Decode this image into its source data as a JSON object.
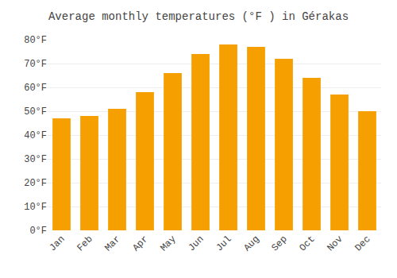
{
  "chart_data": {
    "type": "bar",
    "title": "Average monthly temperatures (°F ) in Gérakas",
    "categories": [
      "Jan",
      "Feb",
      "Mar",
      "Apr",
      "May",
      "Jun",
      "Jul",
      "Aug",
      "Sep",
      "Oct",
      "Nov",
      "Dec"
    ],
    "values": [
      47,
      48,
      51,
      58,
      66,
      74,
      78,
      77,
      72,
      64,
      57,
      50
    ],
    "color": "#F5A000",
    "ylim": [
      0,
      80
    ],
    "yticks": [
      {
        "value": 0,
        "label": "0°F"
      },
      {
        "value": 10,
        "label": "10°F"
      },
      {
        "value": 20,
        "label": "20°F"
      },
      {
        "value": 30,
        "label": "30°F"
      },
      {
        "value": 40,
        "label": "40°F"
      },
      {
        "value": 50,
        "label": "50°F"
      },
      {
        "value": 60,
        "label": "60°F"
      },
      {
        "value": 70,
        "label": "70°F"
      },
      {
        "value": 80,
        "label": "80°F"
      }
    ],
    "grid": true
  }
}
